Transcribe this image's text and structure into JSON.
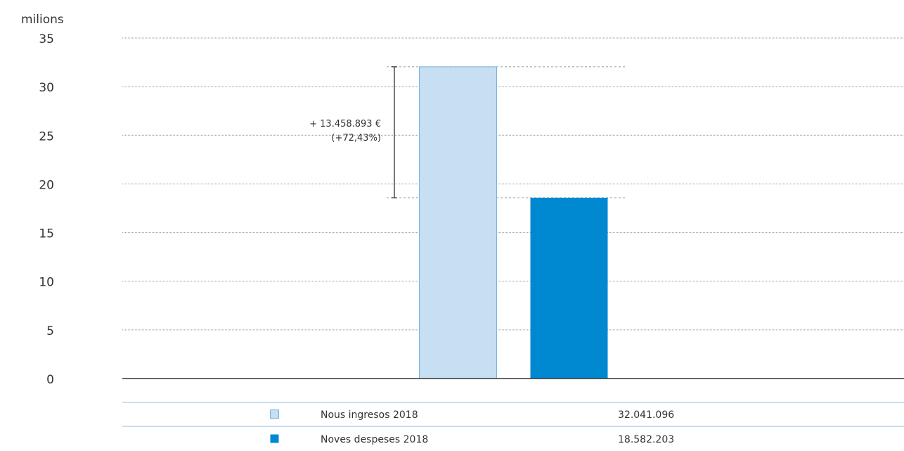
{
  "chart_data": {
    "type": "bar",
    "ylabel": "milions",
    "ylim": [
      0,
      35
    ],
    "yticks": [
      0,
      5,
      10,
      15,
      20,
      25,
      30,
      35
    ],
    "grid": true,
    "series": [
      {
        "name": "Nous ingresos 2018",
        "value": 32.041096,
        "display_value": "32.041.096",
        "color": "#c6dff2"
      },
      {
        "name": "Noves despeses 2018",
        "value": 18.582203,
        "display_value": "18.582.203",
        "color": "#0088d1"
      }
    ],
    "annotation": {
      "line1": "+ 13.458.893 €",
      "line2": "(+72,43%)"
    }
  },
  "colors": {
    "axis": "#333333",
    "grid": "#9a9a9a",
    "table_rule": "#8fbbe0",
    "text": "#333333",
    "bar1_border": "#7ab3dd"
  }
}
